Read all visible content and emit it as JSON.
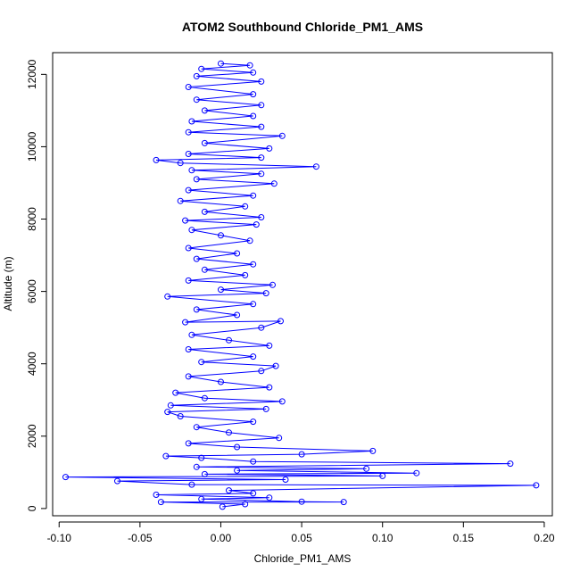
{
  "chart_data": {
    "type": "line",
    "title": "ATOM2 Southbound Chloride_PM1_AMS",
    "xlabel": "Chloride_PM1_AMS",
    "ylabel": "Altitude (m)",
    "xlim": [
      -0.104,
      0.205
    ],
    "ylim": [
      -200,
      12600
    ],
    "x_ticks": [
      -0.1,
      -0.05,
      0.0,
      0.05,
      0.1,
      0.15,
      0.2
    ],
    "x_tick_labels": [
      "-0.10",
      "-0.05",
      "0.00",
      "0.05",
      "0.10",
      "0.15",
      "0.20"
    ],
    "y_ticks": [
      0,
      2000,
      4000,
      6000,
      8000,
      10000,
      12000
    ],
    "y_tick_labels": [
      "0",
      "2000",
      "4000",
      "6000",
      "8000",
      "10000",
      "12000"
    ],
    "grid": false,
    "legend": "none",
    "series_color": "#0000ff",
    "marker": "open-circle",
    "series": [
      {
        "points": [
          {
            "x": 0.001,
            "y": 50
          },
          {
            "x": 0.015,
            "y": 120
          },
          {
            "x": -0.037,
            "y": 180
          },
          {
            "x": 0.076,
            "y": 180
          },
          {
            "x": 0.05,
            "y": 190
          },
          {
            "x": -0.012,
            "y": 260
          },
          {
            "x": 0.03,
            "y": 300
          },
          {
            "x": -0.04,
            "y": 380
          },
          {
            "x": 0.02,
            "y": 420
          },
          {
            "x": 0.005,
            "y": 500
          },
          {
            "x": 0.195,
            "y": 640
          },
          {
            "x": -0.018,
            "y": 660
          },
          {
            "x": -0.064,
            "y": 760
          },
          {
            "x": 0.04,
            "y": 800
          },
          {
            "x": -0.096,
            "y": 870
          },
          {
            "x": 0.1,
            "y": 900
          },
          {
            "x": -0.01,
            "y": 950
          },
          {
            "x": 0.121,
            "y": 980
          },
          {
            "x": 0.01,
            "y": 1050
          },
          {
            "x": 0.09,
            "y": 1100
          },
          {
            "x": -0.015,
            "y": 1150
          },
          {
            "x": 0.179,
            "y": 1240
          },
          {
            "x": 0.02,
            "y": 1300
          },
          {
            "x": -0.012,
            "y": 1400
          },
          {
            "x": -0.034,
            "y": 1450
          },
          {
            "x": 0.05,
            "y": 1500
          },
          {
            "x": 0.094,
            "y": 1590
          },
          {
            "x": 0.01,
            "y": 1700
          },
          {
            "x": -0.02,
            "y": 1800
          },
          {
            "x": 0.036,
            "y": 1950
          },
          {
            "x": 0.005,
            "y": 2100
          },
          {
            "x": -0.015,
            "y": 2250
          },
          {
            "x": 0.02,
            "y": 2400
          },
          {
            "x": -0.025,
            "y": 2550
          },
          {
            "x": -0.033,
            "y": 2670
          },
          {
            "x": 0.028,
            "y": 2750
          },
          {
            "x": -0.031,
            "y": 2850
          },
          {
            "x": 0.038,
            "y": 2960
          },
          {
            "x": -0.01,
            "y": 3050
          },
          {
            "x": -0.028,
            "y": 3200
          },
          {
            "x": 0.03,
            "y": 3350
          },
          {
            "x": 0.0,
            "y": 3500
          },
          {
            "x": -0.02,
            "y": 3650
          },
          {
            "x": 0.025,
            "y": 3800
          },
          {
            "x": 0.034,
            "y": 3940
          },
          {
            "x": -0.012,
            "y": 4050
          },
          {
            "x": 0.02,
            "y": 4200
          },
          {
            "x": -0.02,
            "y": 4400
          },
          {
            "x": 0.03,
            "y": 4500
          },
          {
            "x": 0.005,
            "y": 4650
          },
          {
            "x": -0.018,
            "y": 4800
          },
          {
            "x": 0.025,
            "y": 5000
          },
          {
            "x": 0.037,
            "y": 5180
          },
          {
            "x": -0.022,
            "y": 5150
          },
          {
            "x": 0.01,
            "y": 5350
          },
          {
            "x": -0.015,
            "y": 5500
          },
          {
            "x": 0.02,
            "y": 5650
          },
          {
            "x": -0.033,
            "y": 5860
          },
          {
            "x": 0.028,
            "y": 5950
          },
          {
            "x": 0.0,
            "y": 6050
          },
          {
            "x": 0.032,
            "y": 6180
          },
          {
            "x": -0.02,
            "y": 6300
          },
          {
            "x": 0.015,
            "y": 6450
          },
          {
            "x": -0.01,
            "y": 6600
          },
          {
            "x": 0.02,
            "y": 6750
          },
          {
            "x": -0.015,
            "y": 6900
          },
          {
            "x": 0.01,
            "y": 7050
          },
          {
            "x": -0.02,
            "y": 7200
          },
          {
            "x": 0.018,
            "y": 7400
          },
          {
            "x": 0.0,
            "y": 7550
          },
          {
            "x": -0.018,
            "y": 7700
          },
          {
            "x": 0.022,
            "y": 7850
          },
          {
            "x": -0.022,
            "y": 7960
          },
          {
            "x": 0.025,
            "y": 8050
          },
          {
            "x": -0.01,
            "y": 8200
          },
          {
            "x": 0.015,
            "y": 8350
          },
          {
            "x": -0.025,
            "y": 8500
          },
          {
            "x": 0.02,
            "y": 8650
          },
          {
            "x": -0.02,
            "y": 8800
          },
          {
            "x": 0.033,
            "y": 8980
          },
          {
            "x": -0.015,
            "y": 9100
          },
          {
            "x": 0.025,
            "y": 9250
          },
          {
            "x": -0.018,
            "y": 9350
          },
          {
            "x": 0.059,
            "y": 9450
          },
          {
            "x": -0.025,
            "y": 9550
          },
          {
            "x": -0.04,
            "y": 9630
          },
          {
            "x": 0.025,
            "y": 9700
          },
          {
            "x": -0.02,
            "y": 9800
          },
          {
            "x": 0.03,
            "y": 9950
          },
          {
            "x": -0.01,
            "y": 10100
          },
          {
            "x": 0.038,
            "y": 10300
          },
          {
            "x": -0.02,
            "y": 10400
          },
          {
            "x": 0.025,
            "y": 10550
          },
          {
            "x": -0.018,
            "y": 10700
          },
          {
            "x": 0.02,
            "y": 10850
          },
          {
            "x": -0.01,
            "y": 11000
          },
          {
            "x": 0.025,
            "y": 11150
          },
          {
            "x": -0.015,
            "y": 11300
          },
          {
            "x": 0.02,
            "y": 11450
          },
          {
            "x": -0.02,
            "y": 11650
          },
          {
            "x": 0.025,
            "y": 11800
          },
          {
            "x": -0.015,
            "y": 11950
          },
          {
            "x": 0.02,
            "y": 12050
          },
          {
            "x": -0.012,
            "y": 12150
          },
          {
            "x": 0.018,
            "y": 12250
          },
          {
            "x": 0.0,
            "y": 12300
          }
        ]
      }
    ]
  }
}
